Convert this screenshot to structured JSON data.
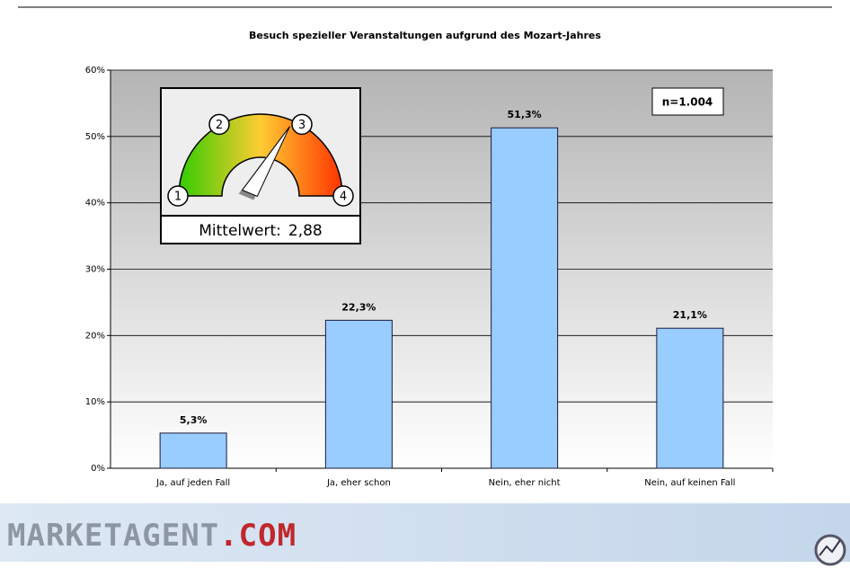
{
  "chart_data": {
    "type": "bar",
    "title": "Besuch spezieller Veranstaltungen aufgrund des Mozart-Jahres",
    "categories": [
      "Ja, auf jeden Fall",
      "Ja, eher schon",
      "Nein, eher nicht",
      "Nein, auf keinen Fall"
    ],
    "values": [
      5.3,
      22.3,
      51.3,
      21.1
    ],
    "value_labels": [
      "5,3%",
      "22,3%",
      "51,3%",
      "21,1%"
    ],
    "color": "#99ccff",
    "ylim": [
      0,
      60
    ],
    "yticks": [
      {
        "value": 0,
        "label": "0%"
      },
      {
        "value": 10,
        "label": "10%"
      },
      {
        "value": 20,
        "label": "20%"
      },
      {
        "value": 30,
        "label": "30%"
      },
      {
        "value": 40,
        "label": "40%"
      },
      {
        "value": 50,
        "label": "50%"
      },
      {
        "value": 60,
        "label": "60%"
      }
    ],
    "grid": true,
    "annotation": "n=1.004",
    "gauge": {
      "label": "Mittelwert:",
      "value": 2.88,
      "value_label": "2,88",
      "ticks": [
        1,
        2,
        3,
        4
      ]
    }
  },
  "footer": {
    "brand": "MARKETAGENT",
    "suffix": ".COM"
  }
}
